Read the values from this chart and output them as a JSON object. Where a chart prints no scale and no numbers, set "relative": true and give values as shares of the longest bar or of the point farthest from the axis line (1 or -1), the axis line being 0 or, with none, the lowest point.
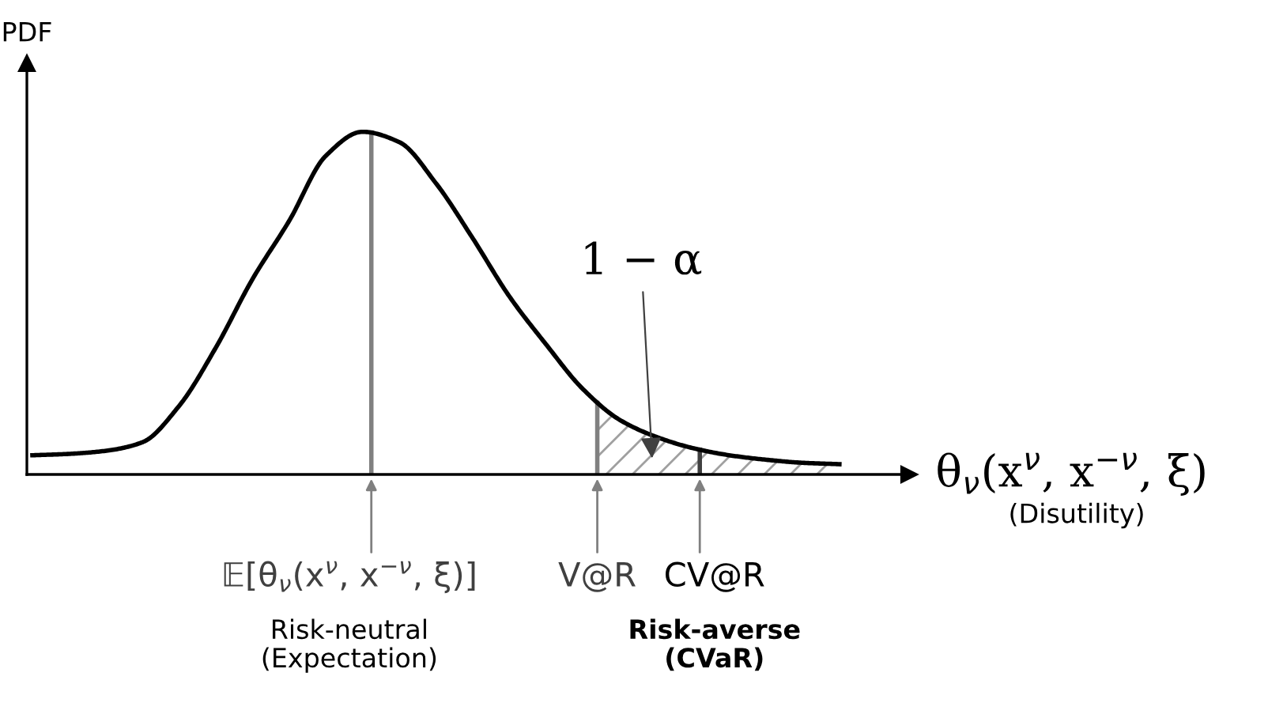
{
  "chart_data": {
    "type": "line",
    "relative": true,
    "ylabel": "PDF",
    "xlabel": "θ$_{ν}$(x$^{ν}$, x$^{−ν}$, ξ)\n(Disutility)",
    "categories": [
      null,
      null,
      null,
      null,
      null,
      null,
      null,
      null,
      null,
      null,
      null,
      null,
      null,
      null,
      null,
      null,
      null,
      null,
      null,
      null,
      null,
      null,
      null
    ],
    "series": [
      {
        "color": "#000000",
        "values": [
          0.056,
          0.06,
          0.069,
          0.094,
          0.2,
          0.37,
          0.57,
          0.74,
          0.93,
          1.0,
          0.97,
          0.85,
          0.69,
          0.52,
          0.38,
          0.25,
          0.16,
          0.11,
          0.077,
          0.056,
          0.043,
          0.034,
          0.03
        ]
      }
    ],
    "annotations": [
      "𝔼[θ$_{ν}$(x$^{ν}$, x$^{−ν}$, ξ)]",
      "V@R",
      "CV@R",
      "1 − α",
      "Risk-neutral\n(Expectation)",
      "Risk-averse\n(CVaR)"
    ],
    "marker": "none",
    "line_style": "solid"
  }
}
